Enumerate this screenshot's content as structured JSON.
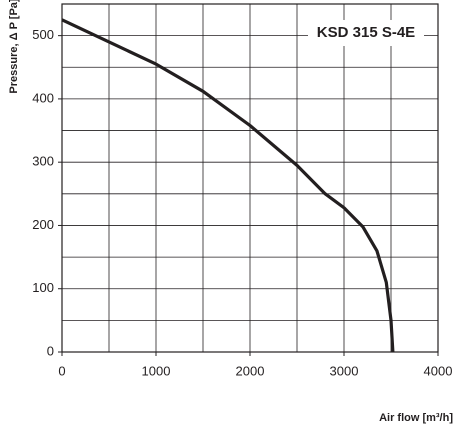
{
  "chart_data": {
    "type": "line",
    "annotation": "KSD 315 S-4E",
    "x_label": "Air flow [m³/h]",
    "y_label": "Pressure, Δ P [Pa]",
    "x": [
      0,
      500,
      1000,
      1500,
      2000,
      2500,
      2800,
      3000,
      3200,
      3350,
      3450,
      3500,
      3520
    ],
    "series": [
      {
        "color": "#231f20",
        "values": [
          525,
          490,
          455,
          412,
          358,
          295,
          250,
          228,
          198,
          160,
          110,
          50,
          0
        ]
      }
    ],
    "xlim": [
      0,
      4000
    ],
    "ylim": [
      0,
      550
    ],
    "xticks": [
      0,
      1000,
      2000,
      3000,
      4000
    ],
    "yticks": [
      0,
      100,
      200,
      300,
      400,
      500
    ],
    "xgrid": [
      500,
      1000,
      1500,
      2000,
      2500,
      3000,
      3500
    ],
    "ygrid": [
      50,
      100,
      150,
      200,
      250,
      300,
      350,
      400,
      450,
      500
    ],
    "grid": true
  }
}
